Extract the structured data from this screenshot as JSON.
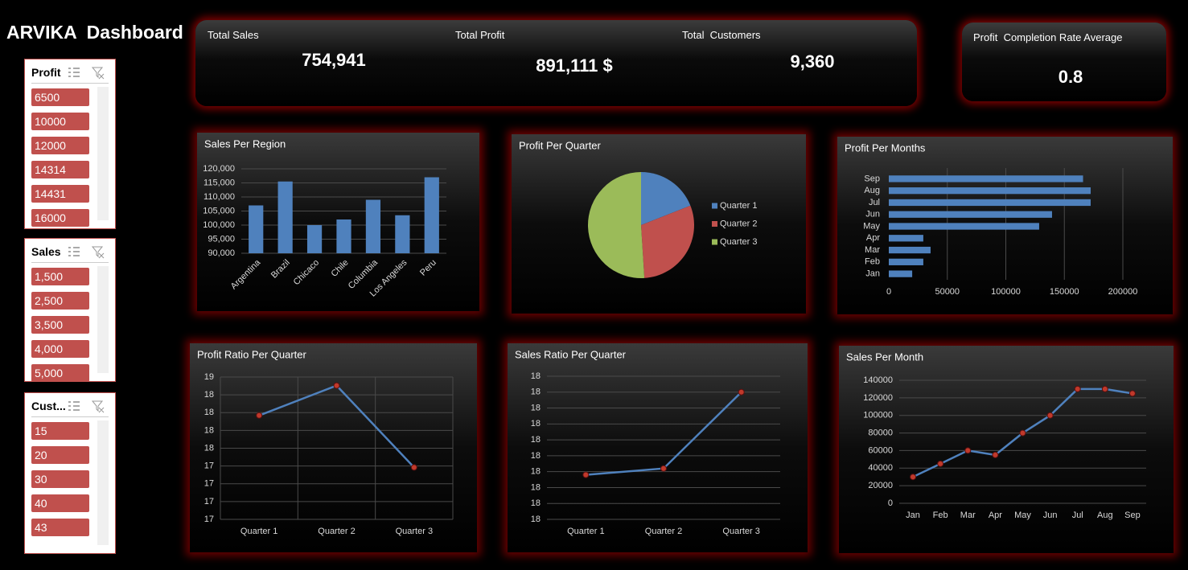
{
  "header": {
    "title": "ARVIKA  Dashboard"
  },
  "kpis": [
    {
      "label": "Total Sales",
      "value": "754,941"
    },
    {
      "label": "Total Profit",
      "value": "891,111 $"
    },
    {
      "label": "Total  Customers",
      "value": "9,360"
    }
  ],
  "side_kpi": {
    "label": "Profit  Completion Rate Average",
    "value": "0.8"
  },
  "slicers": [
    {
      "title": "Profit",
      "items": [
        "6500",
        "10000",
        "12000",
        "14314",
        "14431",
        "16000"
      ]
    },
    {
      "title": "Sales",
      "items": [
        "1,500",
        "2,500",
        "3,500",
        "4,000",
        "5,000"
      ]
    },
    {
      "title": "Cust...",
      "items": [
        "15",
        "20",
        "30",
        "40",
        "43"
      ]
    }
  ],
  "chart_data": [
    {
      "type": "bar",
      "title": "Sales Per Region",
      "categories": [
        "Argentina",
        "Brazil",
        "Chicaco",
        "Chile",
        "Columbia",
        "Los Angeles",
        "Peru"
      ],
      "values": [
        107000,
        115500,
        100000,
        102000,
        109000,
        103500,
        117000
      ],
      "color": "#4f81bd",
      "ylim": [
        90000,
        120000
      ],
      "yticks": [
        {
          "value": 90000,
          "label": "90,000"
        },
        {
          "value": 95000,
          "label": "95,000"
        },
        {
          "value": 100000,
          "label": "100,000"
        },
        {
          "value": 105000,
          "label": "105,000"
        },
        {
          "value": 110000,
          "label": "110,000"
        },
        {
          "value": 115000,
          "label": "115,000"
        },
        {
          "value": 120000,
          "label": "120,000"
        }
      ],
      "grid": true
    },
    {
      "type": "pie",
      "title": "Profit Per Quarter",
      "categories": [
        "Quarter 1",
        "Quarter 2",
        "Quarter 3"
      ],
      "values": [
        19,
        30,
        51
      ],
      "colors": [
        "#4f81bd",
        "#c0504d",
        "#9bbb59"
      ],
      "legend": "right"
    },
    {
      "type": "bar",
      "orientation": "horizontal",
      "title": "Profit Per Months",
      "categories": [
        "Jan",
        "Feb",
        "Mar",
        "Apr",
        "May",
        "Jun",
        "Jul",
        "Aug",
        "Sep"
      ],
      "values": [
        20000,
        29500,
        35700,
        29500,
        128500,
        139500,
        172500,
        172500,
        166000
      ],
      "color": "#4f81bd",
      "xlim": [
        0,
        200000
      ],
      "xticks": [
        0,
        50000,
        100000,
        150000,
        200000
      ],
      "grid": true
    },
    {
      "type": "line",
      "title": "Profit Ratio Per Quarter",
      "categories": [
        "Quarter 1",
        "Quarter 2",
        "Quarter 3"
      ],
      "values": [
        18.06,
        18.48,
        17.33
      ],
      "color": "#4f81bd",
      "marker_color": "#c0392b",
      "ylim": [
        16.6,
        18.6
      ],
      "yticks": [
        {
          "value": 16.6,
          "label": "17"
        },
        {
          "value": 16.85,
          "label": "17"
        },
        {
          "value": 17.1,
          "label": "17"
        },
        {
          "value": 17.35,
          "label": "17"
        },
        {
          "value": 17.6,
          "label": "18"
        },
        {
          "value": 17.85,
          "label": "18"
        },
        {
          "value": 18.1,
          "label": "18"
        },
        {
          "value": 18.35,
          "label": "18"
        },
        {
          "value": 18.6,
          "label": "19"
        }
      ],
      "grid": true,
      "xgrid": true
    },
    {
      "type": "line",
      "title": "Sales Ratio Per Quarter",
      "categories": [
        "Quarter 1",
        "Quarter 2",
        "Quarter 3"
      ],
      "values": [
        17.83,
        17.87,
        18.35
      ],
      "color": "#4f81bd",
      "marker_color": "#c0392b",
      "ylim": [
        17.55,
        18.45
      ],
      "yticks": [
        {
          "value": 17.55,
          "label": "18"
        },
        {
          "value": 17.65,
          "label": "18"
        },
        {
          "value": 17.75,
          "label": "18"
        },
        {
          "value": 17.85,
          "label": "18"
        },
        {
          "value": 17.95,
          "label": "18"
        },
        {
          "value": 18.05,
          "label": "18"
        },
        {
          "value": 18.15,
          "label": "18"
        },
        {
          "value": 18.25,
          "label": "18"
        },
        {
          "value": 18.35,
          "label": "18"
        },
        {
          "value": 18.45,
          "label": "18"
        }
      ],
      "grid": true
    },
    {
      "type": "line",
      "title": "Sales Per Month",
      "categories": [
        "Jan",
        "Feb",
        "Mar",
        "Apr",
        "May",
        "Jun",
        "Jul",
        "Aug",
        "Sep"
      ],
      "values": [
        30000,
        45000,
        60000,
        55000,
        80000,
        100000,
        130000,
        130000,
        125000
      ],
      "color": "#4f81bd",
      "marker_color": "#c0392b",
      "ylim": [
        0,
        140000
      ],
      "yticks": [
        0,
        20000,
        40000,
        60000,
        80000,
        100000,
        120000,
        140000
      ],
      "grid": true
    }
  ]
}
